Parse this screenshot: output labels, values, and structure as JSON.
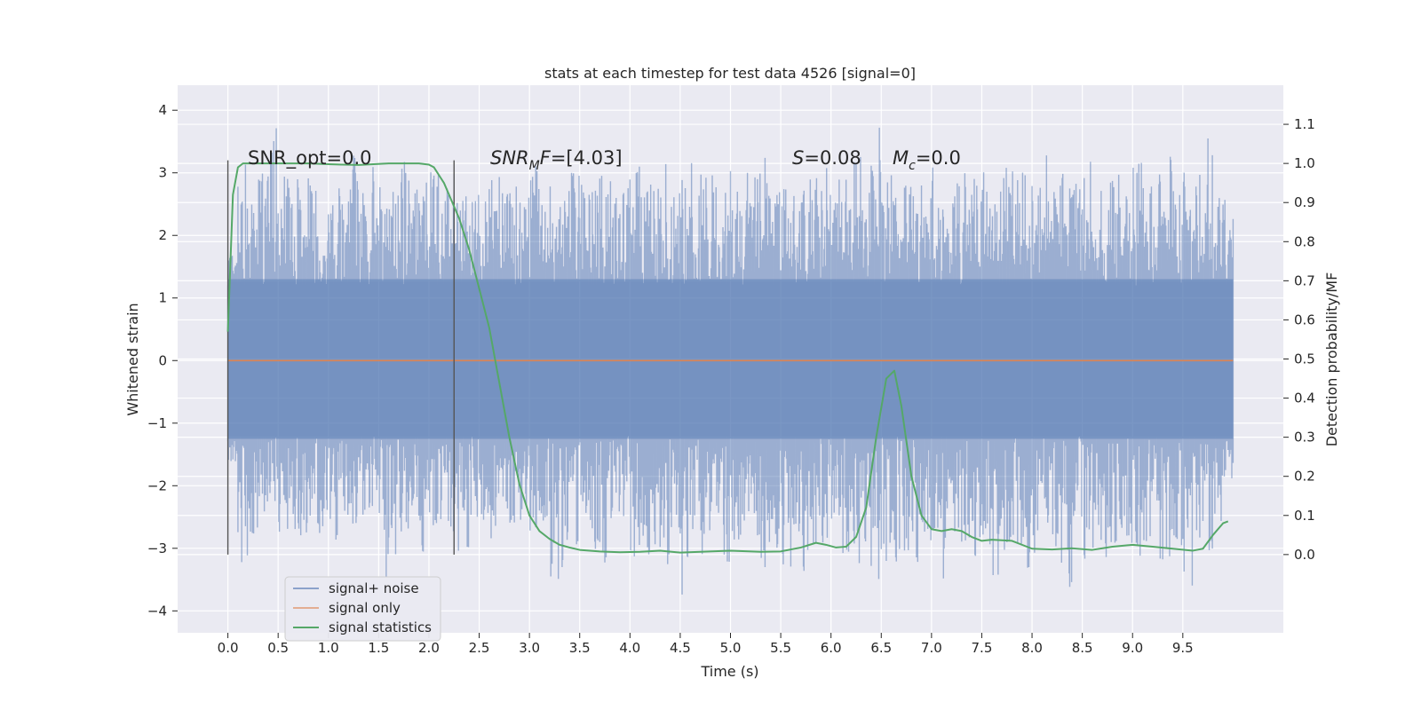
{
  "chart_data": {
    "type": "line",
    "title": "stats at each timestep for test data 4526 [signal=0]",
    "xlabel": "Time (s)",
    "ylabel": "Whitened strain",
    "y2label": "Detection probability/MF",
    "xlim": [
      -0.5,
      10.5
    ],
    "ylim": [
      -4.35,
      4.4
    ],
    "y2lim": [
      -0.2,
      1.2
    ],
    "grid": true,
    "x_ticks": [
      "0.0",
      "0.5",
      "1.0",
      "1.5",
      "2.0",
      "2.5",
      "3.0",
      "3.5",
      "4.0",
      "4.5",
      "5.0",
      "5.5",
      "6.0",
      "6.5",
      "7.0",
      "7.5",
      "8.0",
      "8.5",
      "9.0",
      "9.5"
    ],
    "y_ticks": [
      "4",
      "3",
      "2",
      "1",
      "0",
      "−1",
      "−2",
      "−3",
      "−4"
    ],
    "y2_ticks": [
      "1.1",
      "1.0",
      "0.9",
      "0.8",
      "0.7",
      "0.6",
      "0.5",
      "0.4",
      "0.3",
      "0.2",
      "0.1",
      "0.0"
    ],
    "annotations": {
      "snr_opt": "SNR_opt=0.0",
      "snr_mf_sym": "SNR",
      "snr_mf_sub": "M",
      "snr_mf_f": "F",
      "snr_mf_val": "=[4.03]",
      "s_sym": "S",
      "s_val": "=0.08",
      "mc_sym": "M",
      "mc_sub": "c",
      "mc_val": "=0.0"
    },
    "vlines": [
      0.0,
      2.25
    ],
    "legend": {
      "position": "lower-left",
      "entries": [
        "signal+ noise",
        "signal only",
        "signal statistics"
      ]
    },
    "series": [
      {
        "name": "signal+ noise",
        "color": "#4c72b0",
        "axis": "left",
        "description_range": [
          0,
          10
        ],
        "envelope_upper": [
          1.7,
          3.2,
          2.8,
          3.1,
          4.05,
          3.1,
          2.9,
          2.6,
          3.0,
          2.9,
          2.7,
          3.0,
          3.3,
          2.8,
          3.1,
          2.9,
          2.7,
          3.2,
          3.0,
          2.9,
          3.05,
          2.8,
          3.15,
          2.7,
          3.0,
          2.6,
          2.9,
          3.1,
          2.8,
          3.0,
          3.2,
          2.7,
          3.0,
          2.8,
          3.1,
          2.9,
          2.8,
          3.05,
          3.3,
          2.9,
          3.1,
          2.8,
          3.6,
          3.3,
          2.7,
          2.9,
          3.2,
          3.0,
          3.1,
          2.8,
          3.1,
          3.15,
          3.0,
          3.4,
          2.9,
          3.1,
          2.85,
          2.95,
          3.0,
          3.2,
          3.0,
          2.9,
          3.3,
          2.9,
          3.9,
          3.1,
          2.7,
          2.9,
          3.0,
          2.9,
          3.1,
          2.8,
          3.0,
          3.2,
          3.05,
          3.4,
          2.8,
          3.1,
          3.2,
          3.5,
          2.9,
          3.3,
          3.0,
          3.1,
          3.0,
          3.2,
          2.9,
          3.1,
          3.0,
          2.8,
          3.2,
          2.9,
          3.0,
          3.3,
          2.8,
          3.1,
          3.2,
          3.9,
          2.9,
          2.7
        ],
        "envelope_lower": [
          -1.7,
          -3.3,
          -2.9,
          -2.6,
          -2.4,
          -2.8,
          -2.7,
          -2.8,
          -2.6,
          -2.9,
          -3.0,
          -2.5,
          -3.1,
          -2.7,
          -2.4,
          -3.5,
          -3.3,
          -3.0,
          -2.8,
          -3.1,
          -2.8,
          -2.6,
          -3.05,
          -3.0,
          -2.7,
          -2.8,
          -2.9,
          -2.7,
          -3.1,
          -2.8,
          -3.1,
          -2.8,
          -3.5,
          -3.7,
          -3.0,
          -2.8,
          -3.1,
          -3.3,
          -2.9,
          -2.7,
          -3.3,
          -3.1,
          -3.0,
          -3.4,
          -2.9,
          -3.9,
          -2.9,
          -3.1,
          -2.9,
          -3.3,
          -3.0,
          -2.9,
          -3.2,
          -3.8,
          -3.0,
          -3.3,
          -2.8,
          -3.4,
          -3.0,
          -3.2,
          -2.9,
          -3.1,
          -3.4,
          -2.9,
          -3.6,
          -3.5,
          -3.3,
          -3.1,
          -3.4,
          -3.0,
          -3.1,
          -3.5,
          -3.0,
          -2.9,
          -3.3,
          -3.2,
          -3.7,
          -3.1,
          -3.0,
          -3.4,
          -3.2,
          -2.9,
          -3.3,
          -3.8,
          -3.1,
          -3.2,
          -3.0,
          -3.4,
          -3.0,
          -3.1,
          -3.2,
          -3.0,
          -3.3,
          -3.2,
          -3.1,
          -3.7,
          -3.0,
          -3.1,
          -2.9,
          -1.9
        ]
      },
      {
        "name": "signal only",
        "color": "#dd8452",
        "axis": "left",
        "x": [
          0,
          10
        ],
        "y": [
          0,
          0
        ]
      },
      {
        "name": "signal statistics",
        "color": "#55a868",
        "axis": "right",
        "x": [
          0.0,
          0.05,
          0.1,
          0.15,
          0.2,
          0.3,
          0.5,
          0.8,
          1.0,
          1.3,
          1.6,
          1.9,
          2.0,
          2.05,
          2.1,
          2.15,
          2.2,
          2.25,
          2.3,
          2.4,
          2.5,
          2.6,
          2.7,
          2.8,
          2.9,
          3.0,
          3.1,
          3.2,
          3.3,
          3.4,
          3.5,
          3.7,
          3.9,
          4.1,
          4.3,
          4.5,
          4.7,
          5.0,
          5.3,
          5.5,
          5.7,
          5.85,
          5.95,
          6.05,
          6.15,
          6.25,
          6.35,
          6.45,
          6.55,
          6.63,
          6.7,
          6.8,
          6.9,
          7.0,
          7.1,
          7.2,
          7.3,
          7.4,
          7.5,
          7.6,
          7.8,
          8.0,
          8.2,
          8.4,
          8.6,
          8.8,
          9.0,
          9.2,
          9.4,
          9.6,
          9.7,
          9.8,
          9.9,
          9.95
        ],
        "y": [
          0.57,
          0.92,
          0.99,
          1.0,
          1.0,
          1.0,
          1.0,
          1.0,
          0.998,
          0.996,
          1.0,
          1.0,
          0.997,
          0.99,
          0.97,
          0.95,
          0.92,
          0.89,
          0.86,
          0.78,
          0.68,
          0.58,
          0.44,
          0.3,
          0.18,
          0.1,
          0.06,
          0.04,
          0.025,
          0.018,
          0.012,
          0.008,
          0.006,
          0.007,
          0.01,
          0.005,
          0.007,
          0.01,
          0.007,
          0.008,
          0.018,
          0.03,
          0.025,
          0.018,
          0.02,
          0.045,
          0.12,
          0.3,
          0.45,
          0.47,
          0.38,
          0.2,
          0.1,
          0.065,
          0.06,
          0.065,
          0.06,
          0.045,
          0.035,
          0.038,
          0.035,
          0.015,
          0.013,
          0.016,
          0.012,
          0.02,
          0.025,
          0.02,
          0.015,
          0.01,
          0.015,
          0.05,
          0.08,
          0.085
        ]
      }
    ]
  }
}
